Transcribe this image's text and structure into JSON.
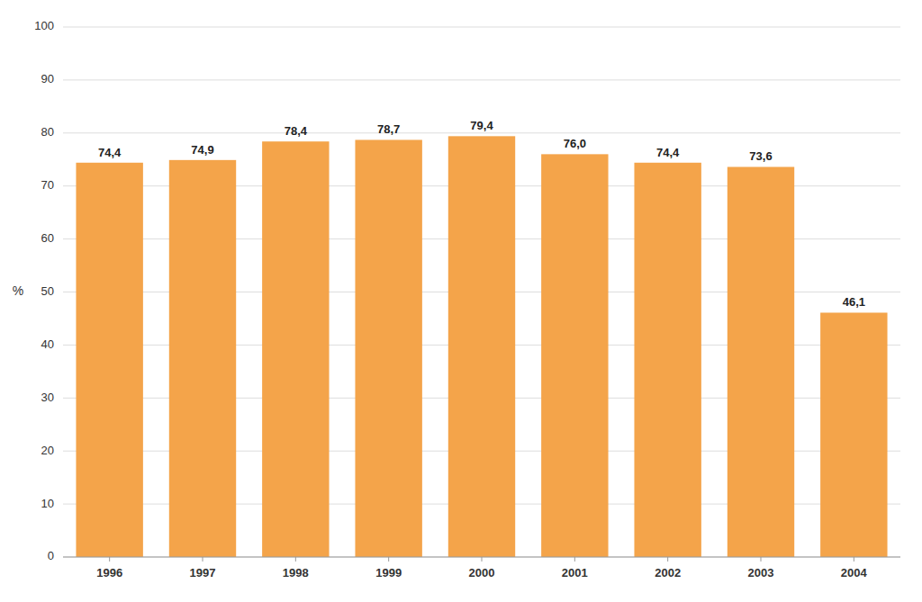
{
  "chart_data": {
    "type": "bar",
    "categories": [
      "1996",
      "1997",
      "1998",
      "1999",
      "2000",
      "2001",
      "2002",
      "2003",
      "2004"
    ],
    "values": [
      74.4,
      74.9,
      78.4,
      78.7,
      79.4,
      76.0,
      74.4,
      73.6,
      46.1
    ],
    "value_labels": [
      "74,4",
      "74,9",
      "78,4",
      "78,7",
      "79,4",
      "76,0",
      "74,4",
      "73,6",
      "46,1"
    ],
    "data_labels": true,
    "color": "#F4A44A",
    "ylabel": "%",
    "ylim": [
      0,
      100
    ],
    "yticks": [
      0,
      10,
      20,
      30,
      40,
      50,
      60,
      70,
      80,
      90,
      100
    ],
    "grid": true
  }
}
